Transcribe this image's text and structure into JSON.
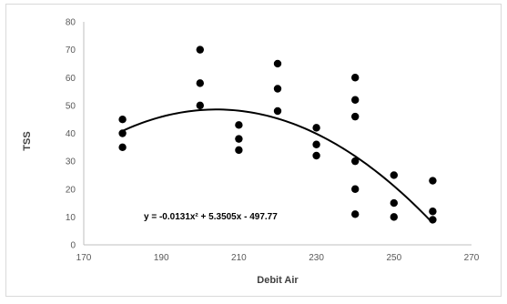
{
  "chart_data": {
    "type": "scatter",
    "title": "",
    "xlabel": "Debit Air",
    "ylabel": "TSS",
    "xlim": [
      170,
      270
    ],
    "ylim": [
      0,
      80
    ],
    "x_ticks": [
      "170",
      "190",
      "210",
      "230",
      "250",
      "270"
    ],
    "y_ticks": [
      "0",
      "10",
      "20",
      "30",
      "40",
      "50",
      "60",
      "70",
      "80"
    ],
    "grid": false,
    "legend": "none",
    "series": [
      {
        "points": [
          {
            "x": 180,
            "y": 45
          },
          {
            "x": 180,
            "y": 40
          },
          {
            "x": 180,
            "y": 35
          },
          {
            "x": 200,
            "y": 70
          },
          {
            "x": 200,
            "y": 58
          },
          {
            "x": 200,
            "y": 50
          },
          {
            "x": 210,
            "y": 43
          },
          {
            "x": 210,
            "y": 38
          },
          {
            "x": 210,
            "y": 34
          },
          {
            "x": 220,
            "y": 65
          },
          {
            "x": 220,
            "y": 56
          },
          {
            "x": 220,
            "y": 48
          },
          {
            "x": 230,
            "y": 42
          },
          {
            "x": 230,
            "y": 36
          },
          {
            "x": 230,
            "y": 32
          },
          {
            "x": 240,
            "y": 60
          },
          {
            "x": 240,
            "y": 52
          },
          {
            "x": 240,
            "y": 46
          },
          {
            "x": 240,
            "y": 30
          },
          {
            "x": 240,
            "y": 20
          },
          {
            "x": 240,
            "y": 11
          },
          {
            "x": 250,
            "y": 25
          },
          {
            "x": 250,
            "y": 15
          },
          {
            "x": 250,
            "y": 10
          },
          {
            "x": 260,
            "y": 23
          },
          {
            "x": 260,
            "y": 12
          },
          {
            "x": 260,
            "y": 9
          }
        ]
      }
    ],
    "trendline": {
      "type": "polynomial",
      "coefficients": {
        "a": -0.0131,
        "b": 5.3505,
        "c": -497.77
      },
      "x_range": [
        180,
        260
      ],
      "equation_label": "y = -0.0131x² + 5.3505x - 497.77"
    },
    "colors": {
      "marker": "#000000",
      "trendline": "#000000",
      "axis": "#bfbfbf",
      "tick_text": "#595959"
    }
  }
}
